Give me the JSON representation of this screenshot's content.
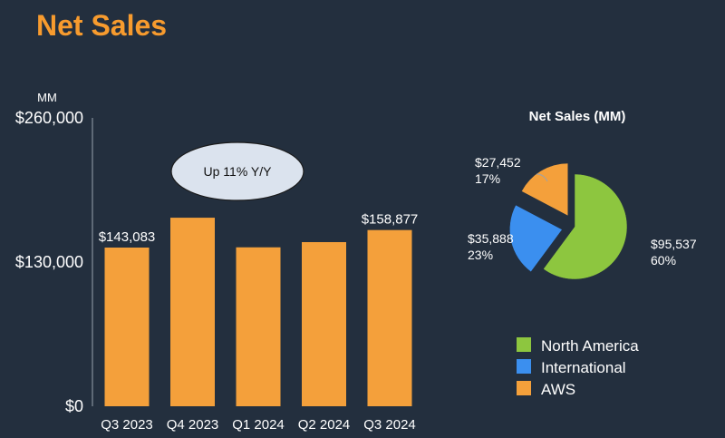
{
  "title": "Net Sales",
  "colors": {
    "background": "#232f3e",
    "title": "#f79b2e",
    "bar": "#f4a03b",
    "north_america": "#8dc63f",
    "international": "#3b8fef",
    "aws": "#f4a03b",
    "callout_fill": "#dbe3ee",
    "axis": "#9aa3ad"
  },
  "chart_data": [
    {
      "type": "bar",
      "ylabel": "MM",
      "ylim": [
        0,
        260000
      ],
      "yticks": [
        "$0",
        "$130,000",
        "$260,000"
      ],
      "ytick_values": [
        0,
        130000,
        260000
      ],
      "categories": [
        "Q3 2023",
        "Q4 2023",
        "Q1 2024",
        "Q2 2024",
        "Q3 2024"
      ],
      "values": [
        143083,
        170000,
        143300,
        148000,
        158877
      ],
      "data_labels": [
        "$143,083",
        "",
        "",
        "",
        "$158,877"
      ],
      "annotation": "Up 11% Y/Y",
      "grid": false
    },
    {
      "type": "pie",
      "title": "Net Sales (MM)",
      "slices": [
        {
          "name": "North America",
          "value": 95537,
          "label": "$95,537",
          "percent": "60%",
          "color": "#8dc63f",
          "exploded": false
        },
        {
          "name": "International",
          "value": 35888,
          "label": "$35,888",
          "percent": "23%",
          "color": "#3b8fef",
          "exploded": true
        },
        {
          "name": "AWS",
          "value": 27452,
          "label": "$27,452",
          "percent": "17%",
          "color": "#f4a03b",
          "exploded": true
        }
      ],
      "legend": [
        "North America",
        "International",
        "AWS"
      ],
      "legend_position": "bottom"
    }
  ]
}
